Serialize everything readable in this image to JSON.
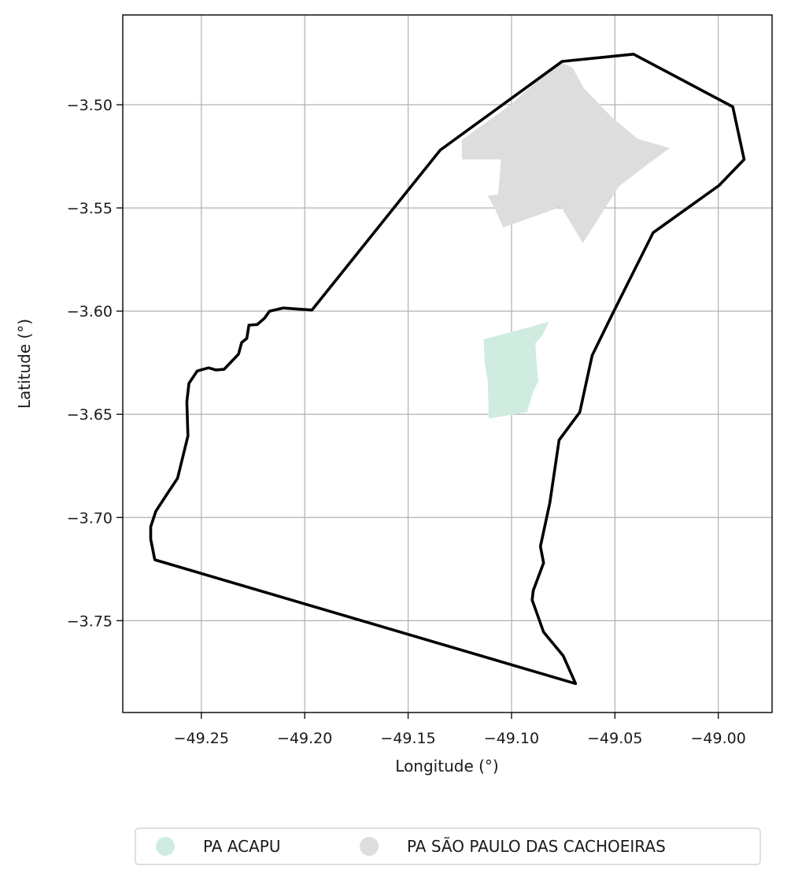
{
  "chart_data": {
    "type": "map",
    "xlabel": "Longitude (°)",
    "ylabel": "Latitude (°)",
    "xlim": [
      -49.288,
      -48.974
    ],
    "ylim": [
      -3.7945,
      -3.4565
    ],
    "xticks": [
      -49.25,
      -49.2,
      -49.15,
      -49.1,
      -49.05,
      -49.0
    ],
    "xtick_labels": [
      "−49.25",
      "−49.20",
      "−49.15",
      "−49.10",
      "−49.05",
      "−49.00"
    ],
    "yticks": [
      -3.5,
      -3.55,
      -3.6,
      -3.65,
      -3.7,
      -3.75
    ],
    "ytick_labels": [
      "−3.50",
      "−3.55",
      "−3.60",
      "−3.65",
      "−3.70",
      "−3.75"
    ],
    "grid": true,
    "legend_position": "bottom-center",
    "boundary": {
      "color": "#000000",
      "coords": [
        [
          -49.041,
          -3.4755
        ],
        [
          -49.0755,
          -3.479
        ],
        [
          -49.1345,
          -3.522
        ],
        [
          -49.1965,
          -3.5995
        ],
        [
          -49.2105,
          -3.5985
        ],
        [
          -49.217,
          -3.6
        ],
        [
          -49.2195,
          -3.6035
        ],
        [
          -49.223,
          -3.6065
        ],
        [
          -49.227,
          -3.6068
        ],
        [
          -49.228,
          -3.6132
        ],
        [
          -49.2305,
          -3.6152
        ],
        [
          -49.232,
          -3.6208
        ],
        [
          -49.239,
          -3.6282
        ],
        [
          -49.243,
          -3.6285
        ],
        [
          -49.2465,
          -3.6275
        ],
        [
          -49.252,
          -3.629
        ],
        [
          -49.256,
          -3.635
        ],
        [
          -49.257,
          -3.644
        ],
        [
          -49.2565,
          -3.6605
        ],
        [
          -49.2615,
          -3.681
        ],
        [
          -49.2665,
          -3.6885
        ],
        [
          -49.272,
          -3.697
        ],
        [
          -49.2745,
          -3.7045
        ],
        [
          -49.2745,
          -3.7105
        ],
        [
          -49.2725,
          -3.7205
        ],
        [
          -49.069,
          -3.7805
        ],
        [
          -49.075,
          -3.767
        ],
        [
          -49.0845,
          -3.7555
        ],
        [
          -49.09,
          -3.74
        ],
        [
          -49.0895,
          -3.7355
        ],
        [
          -49.0845,
          -3.722
        ],
        [
          -49.086,
          -3.714
        ],
        [
          -49.0815,
          -3.693
        ],
        [
          -49.077,
          -3.6625
        ],
        [
          -49.067,
          -3.649
        ],
        [
          -49.061,
          -3.6215
        ],
        [
          -49.0515,
          -3.602
        ],
        [
          -49.0315,
          -3.562
        ],
        [
          -48.9995,
          -3.539
        ],
        [
          -48.9875,
          -3.5265
        ],
        [
          -48.993,
          -3.501
        ],
        [
          -49.041,
          -3.4755
        ]
      ]
    },
    "areas": [
      {
        "name": "PA ACAPU",
        "color": "#d0ece0",
        "coords": [
          [
            -49.1135,
            -3.6137
          ],
          [
            -49.082,
            -3.6052
          ],
          [
            -49.085,
            -3.6118
          ],
          [
            -49.0885,
            -3.6155
          ],
          [
            -49.088,
            -3.623
          ],
          [
            -49.087,
            -3.634
          ],
          [
            -49.0895,
            -3.639
          ],
          [
            -49.0925,
            -3.649
          ],
          [
            -49.111,
            -3.652
          ],
          [
            -49.1115,
            -3.6335
          ],
          [
            -49.113,
            -3.625
          ],
          [
            -49.1135,
            -3.6137
          ]
        ]
      },
      {
        "name": "PA SÃO PAULO DAS CACHOEIRAS",
        "color": "#dddddd",
        "coords": [
          [
            -49.101,
            -3.5005
          ],
          [
            -49.077,
            -3.479
          ],
          [
            -49.0705,
            -3.482
          ],
          [
            -49.065,
            -3.492
          ],
          [
            -49.051,
            -3.5065
          ],
          [
            -49.039,
            -3.5165
          ],
          [
            -49.0235,
            -3.521
          ],
          [
            -49.035,
            -3.5295
          ],
          [
            -49.048,
            -3.5395
          ],
          [
            -49.0655,
            -3.567
          ],
          [
            -49.076,
            -3.5495
          ],
          [
            -49.104,
            -3.5595
          ],
          [
            -49.1085,
            -3.5495
          ],
          [
            -49.1115,
            -3.544
          ],
          [
            -49.1065,
            -3.5435
          ],
          [
            -49.105,
            -3.5265
          ],
          [
            -49.124,
            -3.5265
          ],
          [
            -49.124,
            -3.517
          ],
          [
            -49.101,
            -3.5005
          ]
        ]
      }
    ]
  }
}
